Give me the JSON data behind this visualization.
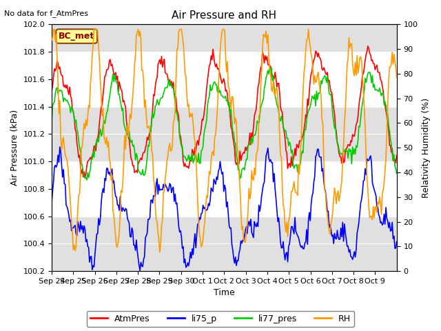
{
  "title": "Air Pressure and RH",
  "no_data_text": "No data for f_AtmPres",
  "xlabel": "Time",
  "ylabel_left": "Air Pressure (kPa)",
  "ylabel_right": "Relativity Humidity (%)",
  "ylim_left": [
    100.2,
    102.0
  ],
  "ylim_right": [
    0,
    100
  ],
  "yticks_left": [
    100.2,
    100.4,
    100.6,
    100.8,
    101.0,
    101.2,
    101.4,
    101.6,
    101.8,
    102.0
  ],
  "yticks_right": [
    0,
    10,
    20,
    30,
    40,
    50,
    60,
    70,
    80,
    90,
    100
  ],
  "x_tick_labels": [
    "Sep 24",
    "Sep 25",
    "Sep 26",
    "Sep 27",
    "Sep 28",
    "Sep 29",
    "Sep 30",
    "Oct 1",
    "Oct 2",
    "Oct 3",
    "Oct 4",
    "Oct 5",
    "Oct 6",
    "Oct 7",
    "Oct 8",
    "Oct 9"
  ],
  "legend_labels": [
    "AtmPres",
    "li75_p",
    "li77_pres",
    "RH"
  ],
  "band_color": "#e0e0e0",
  "box_label": "BC_met",
  "box_color": "#ffff99",
  "box_edge_color": "#8b4513",
  "line_colors": {
    "AtmPres": "#ff0000",
    "li75_p": "#0000ff",
    "li77_pres": "#00cc00",
    "RH": "#ff9900"
  },
  "figsize": [
    6.4,
    4.8
  ],
  "dpi": 100
}
